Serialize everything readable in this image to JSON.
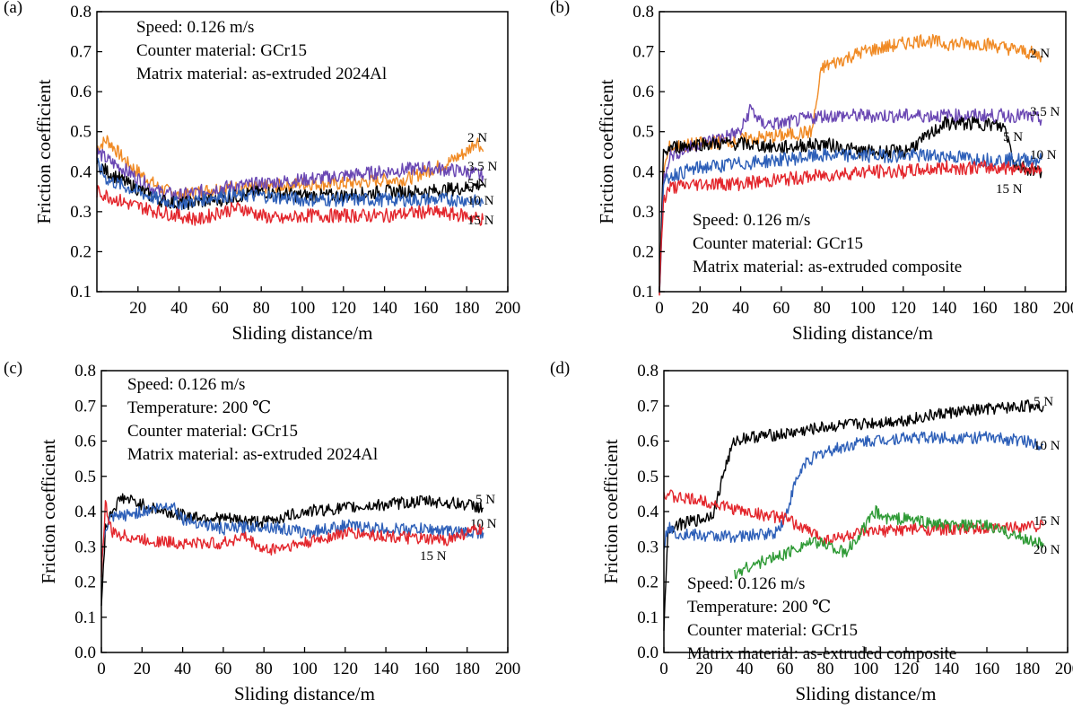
{
  "chart_data": [
    {
      "type": "line",
      "panel_label": "(a)",
      "xlabel": "Sliding distance/m",
      "ylabel": "Friction coefficient",
      "xlim": [
        0,
        200
      ],
      "ylim": [
        0.1,
        0.8
      ],
      "x_ticks": [
        20,
        40,
        60,
        80,
        100,
        120,
        140,
        160,
        180,
        200
      ],
      "y_ticks": [
        0.1,
        0.2,
        0.3,
        0.4,
        0.5,
        0.6,
        0.7,
        0.8
      ],
      "grid": false,
      "annotations": [
        "Speed: 0.126 m/s",
        "Counter material: GCr15",
        "Matrix material: as-extruded 2024Al"
      ],
      "series": [
        {
          "name": "2 N",
          "color": "#f08a24",
          "x": [
            0,
            5,
            15,
            30,
            40,
            60,
            80,
            100,
            120,
            140,
            150,
            160,
            170,
            180,
            185,
            188
          ],
          "y": [
            0.46,
            0.48,
            0.42,
            0.36,
            0.34,
            0.36,
            0.36,
            0.37,
            0.37,
            0.38,
            0.38,
            0.4,
            0.42,
            0.45,
            0.48,
            0.45
          ]
        },
        {
          "name": "3.5 N",
          "color": "#6a47b3",
          "x": [
            0,
            5,
            15,
            30,
            40,
            60,
            80,
            100,
            120,
            140,
            160,
            180,
            188
          ],
          "y": [
            0.45,
            0.43,
            0.4,
            0.35,
            0.34,
            0.36,
            0.37,
            0.38,
            0.39,
            0.4,
            0.41,
            0.4,
            0.39
          ]
        },
        {
          "name": "5 N",
          "color": "#000000",
          "x": [
            0,
            5,
            15,
            30,
            40,
            60,
            80,
            100,
            120,
            140,
            160,
            180,
            188
          ],
          "y": [
            0.42,
            0.4,
            0.37,
            0.33,
            0.32,
            0.33,
            0.35,
            0.34,
            0.34,
            0.35,
            0.35,
            0.36,
            0.37
          ]
        },
        {
          "name": "10 N",
          "color": "#2d5fb8",
          "x": [
            0,
            5,
            15,
            30,
            40,
            60,
            80,
            100,
            120,
            140,
            160,
            180,
            188
          ],
          "y": [
            0.42,
            0.38,
            0.36,
            0.33,
            0.32,
            0.34,
            0.34,
            0.33,
            0.33,
            0.33,
            0.33,
            0.33,
            0.32
          ]
        },
        {
          "name": "15 N",
          "color": "#e3262c",
          "x": [
            0,
            5,
            15,
            30,
            40,
            50,
            60,
            70,
            80,
            90,
            100,
            120,
            140,
            160,
            180,
            188
          ],
          "y": [
            0.35,
            0.34,
            0.32,
            0.3,
            0.29,
            0.28,
            0.3,
            0.31,
            0.29,
            0.28,
            0.29,
            0.29,
            0.29,
            0.3,
            0.29,
            0.28
          ]
        }
      ]
    },
    {
      "type": "line",
      "panel_label": "(b)",
      "xlabel": "Sliding distance/m",
      "ylabel": "Friction coefficient",
      "xlim": [
        0,
        200
      ],
      "ylim": [
        0.1,
        0.8
      ],
      "x_ticks": [
        0,
        20,
        40,
        60,
        80,
        100,
        120,
        140,
        160,
        180,
        200
      ],
      "y_ticks": [
        0.1,
        0.2,
        0.3,
        0.4,
        0.5,
        0.6,
        0.7,
        0.8
      ],
      "grid": false,
      "annotations": [
        "Speed: 0.126 m/s",
        "Counter material: GCr15",
        "Matrix material: as-extruded composite"
      ],
      "series": [
        {
          "name": "2 N",
          "color": "#f08a24",
          "x": [
            0,
            2,
            5,
            20,
            40,
            60,
            75,
            80,
            90,
            100,
            120,
            130,
            140,
            160,
            180,
            188
          ],
          "y": [
            0.1,
            0.4,
            0.46,
            0.47,
            0.48,
            0.49,
            0.5,
            0.66,
            0.68,
            0.7,
            0.72,
            0.73,
            0.72,
            0.72,
            0.7,
            0.69
          ]
        },
        {
          "name": "3.5 N",
          "color": "#6a47b3",
          "x": [
            0,
            2,
            5,
            20,
            40,
            45,
            50,
            60,
            80,
            100,
            120,
            140,
            160,
            180,
            188
          ],
          "y": [
            0.1,
            0.38,
            0.44,
            0.47,
            0.5,
            0.56,
            0.52,
            0.52,
            0.54,
            0.54,
            0.54,
            0.54,
            0.54,
            0.54,
            0.53
          ]
        },
        {
          "name": "5 N",
          "color": "#000000",
          "x": [
            0,
            2,
            5,
            20,
            40,
            60,
            80,
            100,
            120,
            130,
            140,
            160,
            170,
            175,
            180,
            188
          ],
          "y": [
            0.1,
            0.44,
            0.46,
            0.47,
            0.47,
            0.46,
            0.47,
            0.45,
            0.45,
            0.48,
            0.52,
            0.52,
            0.51,
            0.42,
            0.41,
            0.4
          ]
        },
        {
          "name": "10 N",
          "color": "#2d5fb8",
          "x": [
            0,
            2,
            5,
            20,
            40,
            60,
            80,
            100,
            120,
            140,
            160,
            180,
            188
          ],
          "y": [
            0.1,
            0.36,
            0.39,
            0.41,
            0.42,
            0.43,
            0.44,
            0.44,
            0.44,
            0.44,
            0.43,
            0.43,
            0.43
          ]
        },
        {
          "name": "15 N",
          "color": "#e3262c",
          "x": [
            0,
            2,
            5,
            20,
            40,
            60,
            80,
            100,
            120,
            140,
            160,
            180,
            188
          ],
          "y": [
            0.1,
            0.33,
            0.36,
            0.37,
            0.37,
            0.38,
            0.39,
            0.4,
            0.4,
            0.41,
            0.41,
            0.41,
            0.4
          ]
        }
      ]
    },
    {
      "type": "line",
      "panel_label": "(c)",
      "xlabel": "Sliding distance/m",
      "ylabel": "Friction coefficient",
      "xlim": [
        0,
        200
      ],
      "ylim": [
        0.0,
        0.8
      ],
      "x_ticks": [
        0,
        20,
        40,
        60,
        80,
        100,
        120,
        140,
        160,
        180,
        200
      ],
      "y_ticks": [
        0.0,
        0.1,
        0.2,
        0.3,
        0.4,
        0.5,
        0.6,
        0.7,
        0.8
      ],
      "grid": false,
      "annotations": [
        "Speed: 0.126 m/s",
        "Temperature: 200 ℃",
        "Counter material: GCr15",
        "Matrix material: as-extruded 2024Al"
      ],
      "series": [
        {
          "name": "5 N",
          "color": "#000000",
          "x": [
            0,
            2,
            5,
            10,
            20,
            30,
            40,
            60,
            80,
            100,
            120,
            140,
            160,
            180,
            188
          ],
          "y": [
            0.15,
            0.35,
            0.4,
            0.44,
            0.42,
            0.4,
            0.39,
            0.38,
            0.37,
            0.4,
            0.41,
            0.42,
            0.43,
            0.42,
            0.41
          ]
        },
        {
          "name": "10 N",
          "color": "#2d5fb8",
          "x": [
            0,
            2,
            5,
            20,
            35,
            40,
            60,
            80,
            100,
            120,
            140,
            160,
            180,
            188
          ],
          "y": [
            0.25,
            0.35,
            0.38,
            0.4,
            0.42,
            0.38,
            0.35,
            0.36,
            0.34,
            0.36,
            0.35,
            0.35,
            0.34,
            0.34
          ]
        },
        {
          "name": "15 N",
          "color": "#e3262c",
          "x": [
            0,
            2,
            5,
            20,
            40,
            60,
            70,
            80,
            100,
            120,
            140,
            160,
            170,
            180,
            188
          ],
          "y": [
            0.22,
            0.42,
            0.34,
            0.32,
            0.31,
            0.31,
            0.33,
            0.29,
            0.31,
            0.34,
            0.33,
            0.32,
            0.32,
            0.34,
            0.35
          ]
        }
      ]
    },
    {
      "type": "line",
      "panel_label": "(d)",
      "xlabel": "Sliding distance/m",
      "ylabel": "Friction coefficient",
      "xlim": [
        0,
        200
      ],
      "ylim": [
        0.0,
        0.8
      ],
      "x_ticks": [
        0,
        20,
        40,
        60,
        80,
        100,
        120,
        140,
        160,
        180,
        200
      ],
      "y_ticks": [
        0.0,
        0.1,
        0.2,
        0.3,
        0.4,
        0.5,
        0.6,
        0.7,
        0.8
      ],
      "grid": false,
      "annotations": [
        "Speed: 0.126 m/s",
        "Temperature: 200 ℃",
        "Counter material: GCr15",
        "Matrix material: as-extruded composite"
      ],
      "series": [
        {
          "name": "5 N",
          "color": "#000000",
          "x": [
            0,
            2,
            5,
            20,
            25,
            30,
            35,
            40,
            60,
            80,
            100,
            120,
            140,
            160,
            180,
            188
          ],
          "y": [
            0.05,
            0.35,
            0.36,
            0.38,
            0.4,
            0.52,
            0.6,
            0.61,
            0.62,
            0.64,
            0.65,
            0.66,
            0.68,
            0.69,
            0.7,
            0.7
          ]
        },
        {
          "name": "10 N",
          "color": "#2d5fb8",
          "x": [
            0,
            2,
            5,
            20,
            40,
            55,
            60,
            65,
            70,
            80,
            100,
            120,
            140,
            160,
            180,
            188
          ],
          "y": [
            0.3,
            0.36,
            0.34,
            0.33,
            0.33,
            0.34,
            0.38,
            0.48,
            0.54,
            0.57,
            0.6,
            0.61,
            0.61,
            0.61,
            0.6,
            0.59
          ]
        },
        {
          "name": "15 N",
          "color": "#e3262c",
          "x": [
            0,
            2,
            5,
            20,
            40,
            60,
            80,
            100,
            120,
            140,
            160,
            180,
            188
          ],
          "y": [
            0.45,
            0.45,
            0.44,
            0.43,
            0.4,
            0.38,
            0.32,
            0.34,
            0.35,
            0.35,
            0.35,
            0.36,
            0.36
          ]
        },
        {
          "name": "20 N",
          "color": "#2e9a35",
          "x": [
            35,
            40,
            50,
            60,
            70,
            80,
            90,
            100,
            105,
            110,
            120,
            140,
            160,
            180,
            188
          ],
          "y": [
            0.22,
            0.24,
            0.26,
            0.28,
            0.31,
            0.31,
            0.28,
            0.36,
            0.4,
            0.38,
            0.38,
            0.36,
            0.36,
            0.32,
            0.31
          ]
        }
      ]
    }
  ]
}
